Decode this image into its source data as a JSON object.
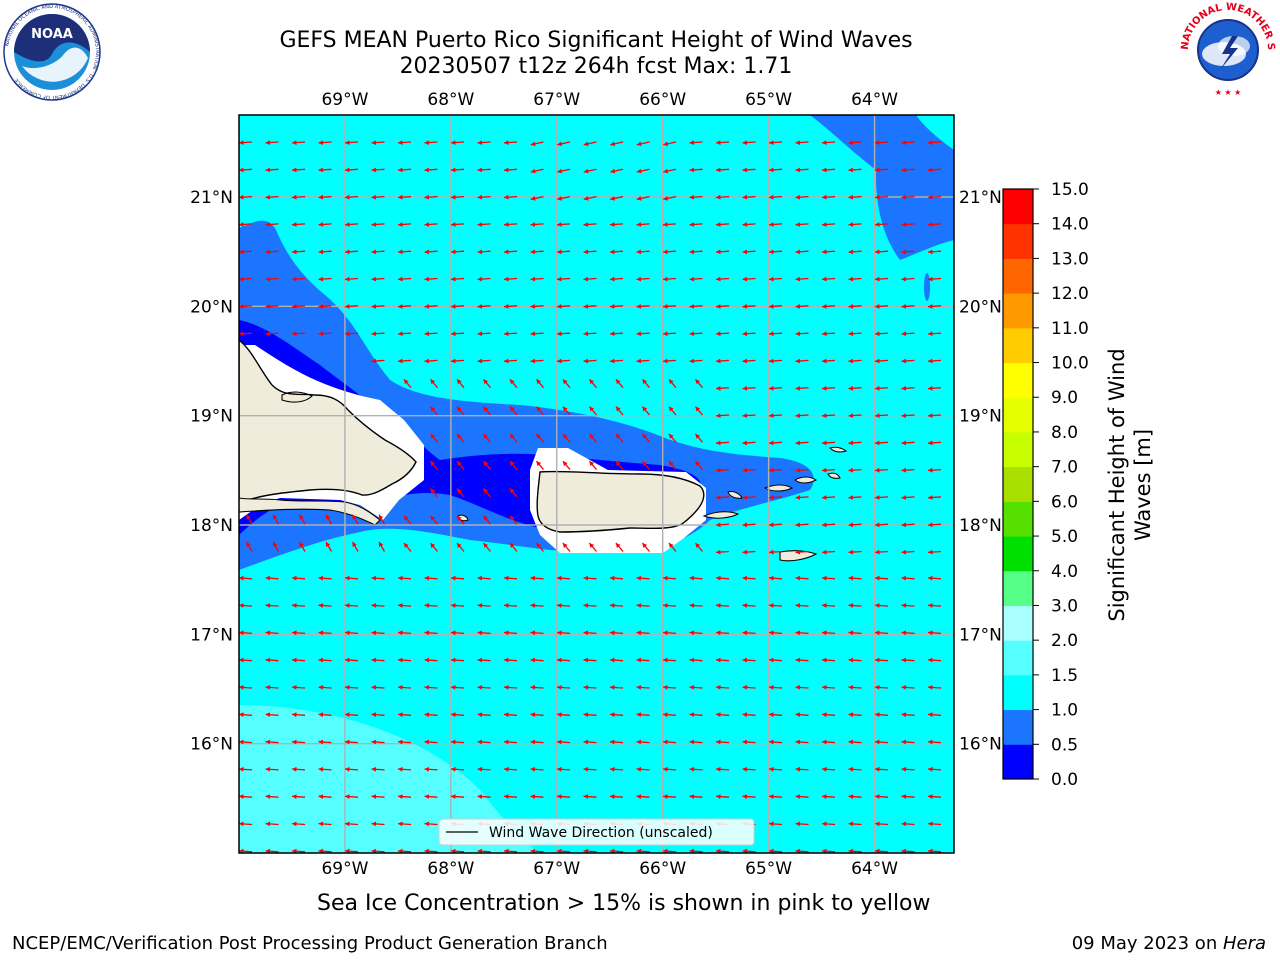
{
  "title_line1": "GEFS MEAN Puerto Rico Significant Height of Wind Waves",
  "title_line2": "20230507 t12z 264h fcst   Max: 1.71",
  "logos": {
    "left": {
      "icon": "noaa-logo-icon",
      "text": "NOAA",
      "ring_text": "NATIONAL OCEANIC AND ATMOSPHERIC ADMINISTRATION · U.S. DEPARTMENT OF COMMERCE"
    },
    "right": {
      "icon": "nws-logo-icon",
      "ring_text": "NATIONAL WEATHER SERVICE"
    }
  },
  "map": {
    "lon_labels": [
      "69°W",
      "68°W",
      "67°W",
      "66°W",
      "65°W",
      "64°W"
    ],
    "lon_values": [
      -69,
      -68,
      -67,
      -66,
      -65,
      -64
    ],
    "lat_labels": [
      "21°N",
      "20°N",
      "19°N",
      "18°N",
      "17°N",
      "16°N"
    ],
    "lat_values": [
      21,
      20,
      19,
      18,
      17,
      16
    ],
    "lon_range": [
      -70.0,
      -63.25
    ],
    "lat_range": [
      15.0,
      21.75
    ],
    "legend_label": "Wind Wave Direction (unscaled)",
    "arrow_color": "#ff0000",
    "land_color": "#efecdc",
    "grid_color": "#b0b0b0"
  },
  "colorbar": {
    "label": "Significant Height of Wind Waves [m]",
    "label_line1": "Significant Height of Wind",
    "label_line2": "Waves [m]",
    "ticks": [
      "0.0",
      "0.5",
      "1.0",
      "1.5",
      "2.0",
      "3.0",
      "4.0",
      "5.0",
      "6.0",
      "7.0",
      "8.0",
      "9.0",
      "10.0",
      "11.0",
      "12.0",
      "13.0",
      "14.0",
      "15.0"
    ],
    "colors": [
      "#0000ff",
      "#1b75ff",
      "#00ffff",
      "#55ffff",
      "#aaffff",
      "#55ff88",
      "#00e000",
      "#55e000",
      "#aae000",
      "#c8ff00",
      "#e6ff00",
      "#ffff00",
      "#ffcc00",
      "#ff9900",
      "#ff6600",
      "#ff3300",
      "#ff0000"
    ]
  },
  "sea_ice_note": "Sea Ice Concentration > 15% is shown in pink to yellow",
  "footer_left": "NCEP/EMC/Verification Post Processing Product Generation Branch",
  "footer_date": "09 May 2023 on ",
  "footer_host": "Hera"
}
